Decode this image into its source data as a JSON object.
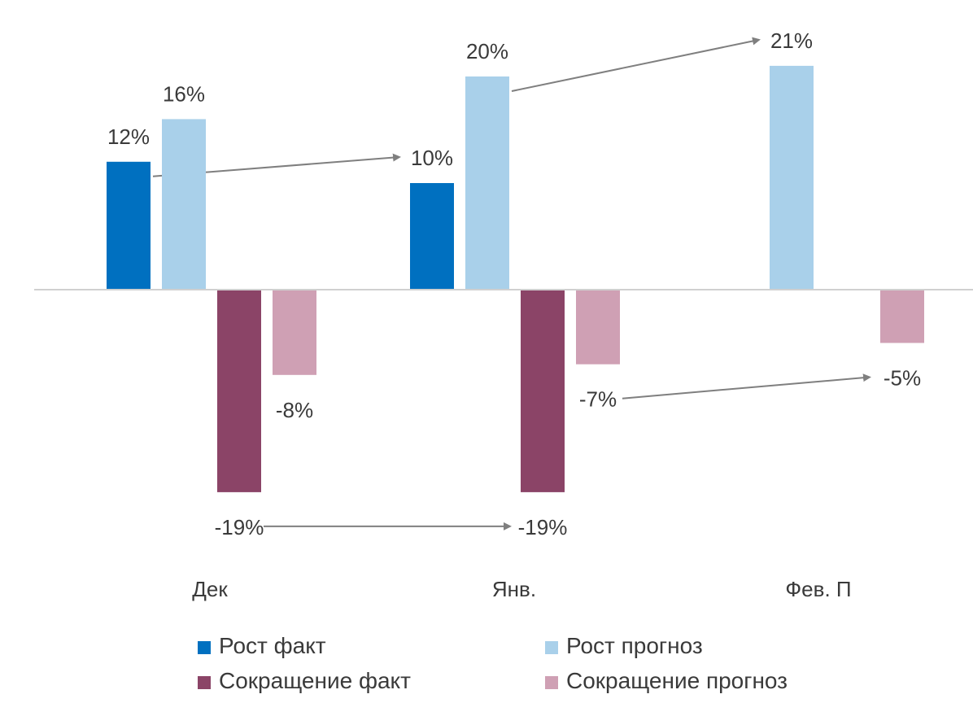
{
  "chart_data": {
    "type": "bar",
    "title": "",
    "xlabel": "",
    "ylabel": "",
    "categories": [
      "Дек",
      "Янв.",
      "Фев. П"
    ],
    "ylim": [
      -21,
      23
    ],
    "grid": false,
    "legend_position": "bottom",
    "series": [
      {
        "name": "Рост факт",
        "color": "#0070c0",
        "values": [
          12,
          10,
          null
        ],
        "labels": [
          "12%",
          "10%",
          ""
        ]
      },
      {
        "name": "Рост прогноз",
        "color": "#a9d0ea",
        "values": [
          16,
          20,
          21
        ],
        "labels": [
          "16%",
          "20%",
          "21%"
        ]
      },
      {
        "name": "Сокращение факт",
        "color": "#8b4467",
        "values": [
          -19,
          -19,
          null
        ],
        "labels": [
          "-19%",
          "-19%",
          ""
        ]
      },
      {
        "name": "Сокращение прогноз",
        "color": "#cfa0b4",
        "values": [
          -8,
          -7,
          -5
        ],
        "labels": [
          "-8%",
          "-7%",
          "-5%"
        ]
      }
    ],
    "annotations": [
      {
        "type": "arrow",
        "series": "Рост факт",
        "from_category": "Дек",
        "to_category": "Янв."
      },
      {
        "type": "arrow",
        "series": "Рост прогноз",
        "from_category": "Янв.",
        "to_category": "Фев. П"
      },
      {
        "type": "arrow",
        "series": "Сокращение факт",
        "from_category": "Дек",
        "to_category": "Янв."
      },
      {
        "type": "arrow",
        "series": "Сокращение прогноз",
        "from_category": "Янв.",
        "to_category": "Фев. П"
      }
    ],
    "arrow_color": "#7f7f7f"
  }
}
